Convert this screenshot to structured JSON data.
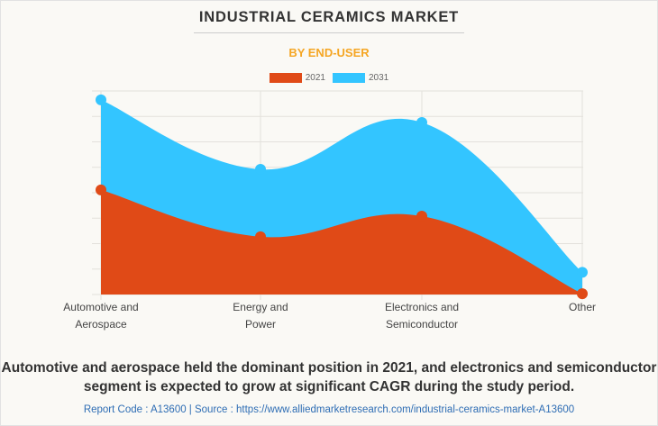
{
  "chart_data": {
    "type": "area",
    "title": "INDUSTRIAL CERAMICS MARKET",
    "subtitle": "BY END-USER",
    "categories": [
      "Automotive and\nAerospace",
      "Energy and\nPower",
      "Electronics and\nSemiconductor",
      "Other"
    ],
    "series": [
      {
        "name": "2031",
        "color": "#33c5ff",
        "values": [
          765,
          492,
          676,
          87
        ]
      },
      {
        "name": "2021",
        "color": "#e04a17",
        "values": [
          411,
          227,
          308,
          3
        ]
      }
    ],
    "legend": [
      {
        "name": "2021",
        "color": "#e04a17"
      },
      {
        "name": "2031",
        "color": "#33c5ff"
      }
    ],
    "legend_position": "top-center",
    "ylim": [
      0,
      800
    ],
    "y_gridlines": 8,
    "y_tick_labels_shown": false,
    "grid": true,
    "curve": "smooth",
    "xlabel": "",
    "ylabel": ""
  },
  "caption": "Automotive and aerospace held the dominant position in 2021, and electronics and semiconductor segment is expected to grow at significant CAGR during the study period.",
  "source": "Report Code : A13600  |  Source : https://www.alliedmarketresearch.com/industrial-ceramics-market-A13600"
}
